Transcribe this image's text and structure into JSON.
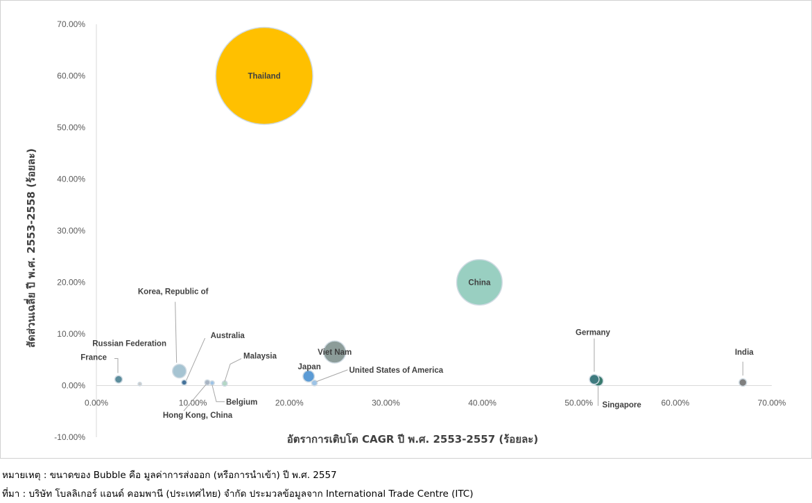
{
  "chart_data": {
    "type": "scatter",
    "variant": "bubble",
    "xlabel": "อัตราการเติบโต CAGR ปี พ.ศ. 2553-2557 (ร้อยละ)",
    "ylabel": "สัดส่วนเฉลี่ย ปี พ.ศ. 2553-2558 (ร้อยละ)",
    "xlim": [
      0,
      70
    ],
    "ylim": [
      -10,
      70
    ],
    "x_ticks": [
      "0.00%",
      "10.00%",
      "20.00%",
      "30.00%",
      "40.00%",
      "50.00%",
      "60.00%",
      "70.00%"
    ],
    "y_ticks": [
      "-10.00%",
      "0.00%",
      "10.00%",
      "20.00%",
      "30.00%",
      "40.00%",
      "50.00%",
      "60.00%",
      "70.00%"
    ],
    "grid": false,
    "points": [
      {
        "label": "Thailand",
        "x": 17.4,
        "y": 60.0,
        "size": 100,
        "color": "#FFC000"
      },
      {
        "label": "China",
        "x": 39.7,
        "y": 20.0,
        "size": 22,
        "color": "#99CFC1"
      },
      {
        "label": "Viet Nam",
        "x": 24.7,
        "y": 6.5,
        "size": 5.2,
        "color": "#8C9C99"
      },
      {
        "label": "Japan",
        "x": 22.0,
        "y": 1.8,
        "size": 1.4,
        "color": "#5B9BD5"
      },
      {
        "label": "United States of America",
        "x": 22.6,
        "y": 0.5,
        "size": 0.35,
        "color": "#9DC3E6"
      },
      {
        "label": "Korea, Republic of",
        "x": 8.6,
        "y": 2.8,
        "size": 2.0,
        "color": "#A6C4D2"
      },
      {
        "label": "Australia",
        "x": 9.1,
        "y": 0.6,
        "size": 0.3,
        "color": "#44729A"
      },
      {
        "label": "Russian Federation",
        "x": 4.5,
        "y": 0.3,
        "size": 0.08,
        "color": "#C9C9C9"
      },
      {
        "label": "France",
        "x": 2.3,
        "y": 1.2,
        "size": 0.6,
        "color": "#5C8D9C"
      },
      {
        "label": "Hong Kong, China",
        "x": 11.5,
        "y": 0.6,
        "size": 0.3,
        "color": "#A9B4C2"
      },
      {
        "label": "Belgium",
        "x": 12.0,
        "y": 0.5,
        "size": 0.2,
        "color": "#9DC3E6"
      },
      {
        "label": "Malaysia",
        "x": 13.3,
        "y": 0.4,
        "size": 0.3,
        "color": "#B4D7C6"
      },
      {
        "label": "Germany",
        "x": 51.6,
        "y": 1.2,
        "size": 1.0,
        "color": "#3E7A7F"
      },
      {
        "label": "Singapore",
        "x": 52.0,
        "y": 0.9,
        "size": 1.1,
        "color": "#3A7B6E"
      },
      {
        "label": "India",
        "x": 67.0,
        "y": 0.6,
        "size": 0.6,
        "color": "#7F7F7F"
      }
    ]
  },
  "footnotes": {
    "note": "หมายเหตุ : ขนาดของ Bubble คือ มูลค่าการส่งออก (หรือการนำเข้า) ปี พ.ศ. 2557",
    "source": "ที่มา : บริษัท โบลลิเกอร์ แอนด์ คอมพานี (ประเทศไทย) จำกัด ประมวลข้อมูลจาก International Trade Centre (ITC)"
  }
}
